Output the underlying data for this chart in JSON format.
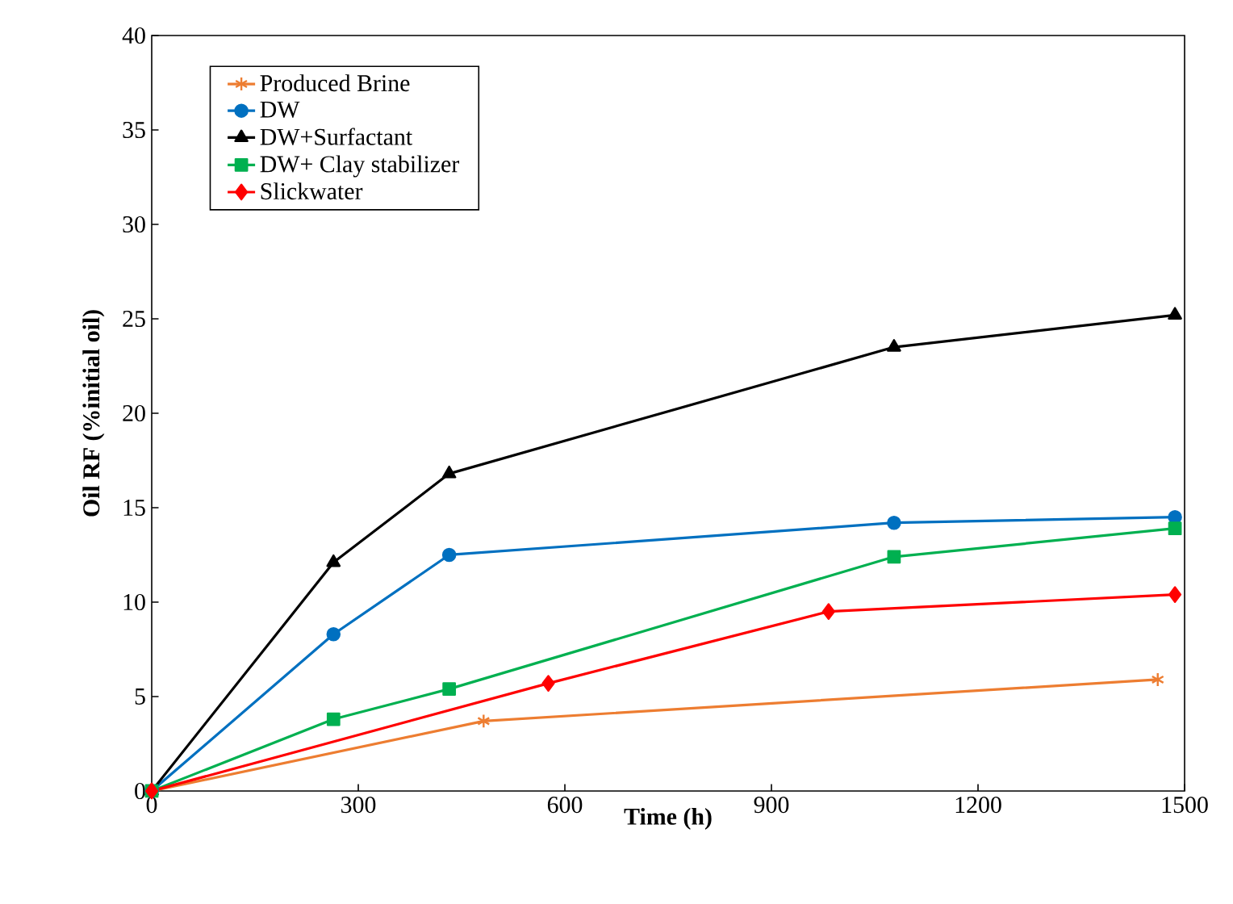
{
  "chart_data": {
    "type": "line",
    "xlabel": "Time (h)",
    "ylabel": "Oil RF (%initial oil)",
    "xlim": [
      0,
      1500
    ],
    "xticks": [
      0,
      300,
      600,
      900,
      1200,
      1500
    ],
    "ylim": [
      0,
      40
    ],
    "yticks": [
      0,
      5,
      10,
      15,
      20,
      25,
      30,
      35,
      40
    ],
    "grid": false,
    "legend": "top left",
    "series": [
      {
        "name": "Produced Brine",
        "color": "#ed7d31",
        "marker": "cross",
        "x": [
          0,
          482,
          1461
        ],
        "values": [
          0,
          3.7,
          5.9
        ]
      },
      {
        "name": "DW",
        "color": "#0070c0",
        "marker": "circle",
        "x": [
          0,
          264,
          432,
          1078,
          1486
        ],
        "values": [
          0,
          8.3,
          12.5,
          14.2,
          14.5
        ]
      },
      {
        "name": "DW+Surfactant",
        "color": "#000000",
        "marker": "triangle",
        "x": [
          0,
          264,
          432,
          1078,
          1486
        ],
        "values": [
          0,
          12.1,
          16.8,
          23.5,
          25.2
        ]
      },
      {
        "name": "DW+ Clay stabilizer",
        "color": "#00b050",
        "marker": "square",
        "x": [
          0,
          264,
          432,
          1078,
          1486
        ],
        "values": [
          0,
          3.8,
          5.4,
          12.4,
          13.9
        ]
      },
      {
        "name": "Slickwater",
        "color": "#ff0000",
        "marker": "diamond",
        "x": [
          0,
          576,
          983,
          1486
        ],
        "values": [
          0,
          5.7,
          9.5,
          10.4
        ]
      }
    ]
  }
}
